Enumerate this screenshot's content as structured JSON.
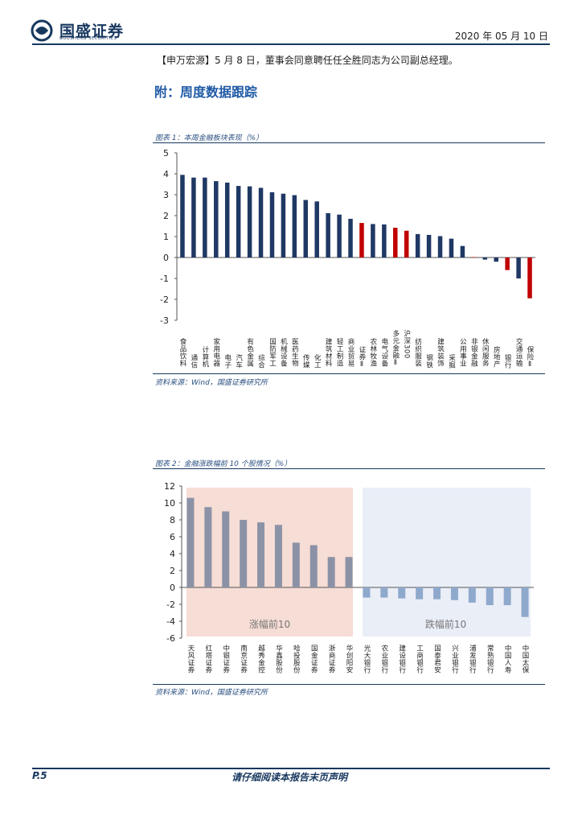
{
  "header": {
    "brand": "国盛证券",
    "brand_sub": "GUOSHENG SECURITIES",
    "date": "2020 年 05 月 10 日"
  },
  "news": {
    "bracket_open": "【",
    "source": "申万宏源",
    "bracket_close": "】",
    "text": "5 月 8 日，董事会同意聘任任全胜同志为公司副总经理。"
  },
  "section_title": "附：周度数据跟踪",
  "figure1": {
    "title": "图表 1：本周金融板块表现（%）",
    "source": "资料来源：Wind，国盛证券研究所"
  },
  "figure2": {
    "title": "图表 2：金融涨跌幅前 10 个股情况（%）",
    "source": "资料来源：Wind，国盛证券研究所"
  },
  "colors": {
    "navy": "#1f3864",
    "red": "#c00000",
    "gray": "#8c92a6",
    "steel": "#8fa9cc",
    "up_bg": "#f6ddd5",
    "down_bg": "#eaeef7"
  },
  "chart_data": [
    {
      "type": "bar",
      "title": "本周金融板块表现（%）",
      "categories": [
        "食品饮料",
        "通信",
        "计算机",
        "家用电器",
        "电子",
        "汽车",
        "有色金属",
        "综合",
        "国防军工",
        "机械设备",
        "医药生物",
        "传媒",
        "化工",
        "建筑材料",
        "轻工制造",
        "商业贸易",
        "证券Ⅱ",
        "农林牧渔",
        "电气设备",
        "多元金融Ⅱ",
        "沪深300",
        "纺织服装",
        "钢铁",
        "建筑装饰",
        "采掘",
        "公用事业",
        "非银金融",
        "休闲服务",
        "房地产",
        "银行",
        "交通运输",
        "保险Ⅱ"
      ],
      "values": [
        3.95,
        3.82,
        3.82,
        3.65,
        3.58,
        3.42,
        3.4,
        3.33,
        3.12,
        3.05,
        2.98,
        2.75,
        2.68,
        2.12,
        2.05,
        1.85,
        1.65,
        1.6,
        1.58,
        1.42,
        1.28,
        1.12,
        1.08,
        1.02,
        0.9,
        0.55,
        0.02,
        -0.1,
        -0.2,
        -0.6,
        -1.0,
        -1.95
      ],
      "highlight": [
        "证券Ⅱ",
        "多元金融Ⅱ",
        "沪深300",
        "非银金融",
        "银行",
        "保险Ⅱ"
      ],
      "ylim": [
        -3,
        5
      ],
      "yticks": [
        5,
        4,
        3,
        2,
        1,
        0,
        -1,
        -2,
        -3
      ]
    },
    {
      "type": "bar",
      "title": "金融涨跌幅前 10 个股情况（%）",
      "categories": [
        "天风证券",
        "红塔证券",
        "中银证券",
        "南京证券",
        "越秀金控",
        "华鑫股份",
        "哈投股份",
        "国金证券",
        "浙商证券",
        "华创阳安",
        "光大银行",
        "农业银行",
        "建设银行",
        "工商银行",
        "国泰君安",
        "兴业银行",
        "浦发银行",
        "常熟银行",
        "中国人寿",
        "中国太保"
      ],
      "values": [
        10.6,
        9.5,
        9.0,
        8.0,
        7.7,
        7.4,
        5.3,
        5.0,
        3.6,
        3.6,
        -1.2,
        -1.2,
        -1.3,
        -1.4,
        -1.4,
        -1.5,
        -1.8,
        -2.1,
        -2.1,
        -3.5
      ],
      "groups": [
        {
          "label": "涨幅前10"
        },
        {
          "label": "跌幅前10"
        }
      ],
      "ylim": [
        -6,
        12
      ],
      "yticks": [
        12,
        10,
        8,
        6,
        4,
        2,
        0,
        -2,
        -4,
        -6
      ]
    }
  ],
  "footer": {
    "page": "P.5",
    "disclaimer": "请仔细阅读本报告末页声明"
  }
}
